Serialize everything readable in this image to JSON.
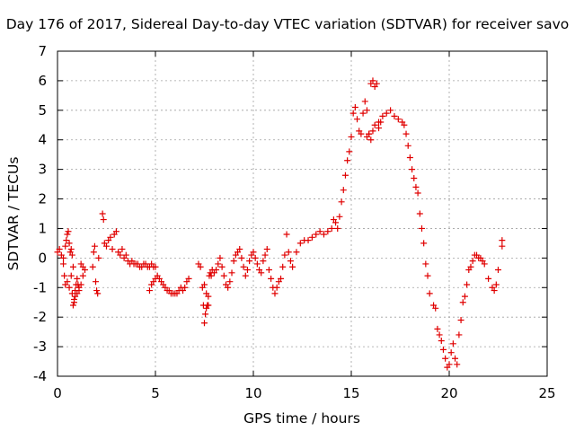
{
  "chart_data": {
    "type": "scatter",
    "title": "Day 176 of 2017, Sidereal Day-to-day VTEC variation (SDTVAR) for receiver savo",
    "xlabel": "GPS time / hours",
    "ylabel": "SDTVAR / TECUs",
    "xlim": [
      0,
      25
    ],
    "ylim": [
      -4,
      7
    ],
    "xticks": [
      0,
      5,
      10,
      15,
      20,
      25
    ],
    "yticks": [
      -4,
      -3,
      -2,
      -1,
      0,
      1,
      2,
      3,
      4,
      5,
      6,
      7
    ],
    "grid": true,
    "marker": "+",
    "color": "#e00000",
    "series": [
      {
        "name": "SDTVAR",
        "x": [
          0.0,
          0.1,
          0.2,
          0.3,
          0.35,
          0.4,
          0.45,
          0.5,
          0.55,
          0.6,
          0.65,
          0.7,
          0.75,
          0.8,
          0.85,
          0.9,
          0.95,
          1.0,
          1.05,
          1.1,
          1.2,
          1.3,
          0.3,
          0.4,
          0.5,
          0.6,
          0.7,
          0.75,
          0.8,
          0.85,
          0.9,
          1.0,
          1.1,
          1.2,
          1.3,
          1.4,
          1.8,
          1.85,
          1.9,
          1.95,
          2.0,
          2.05,
          2.1,
          2.3,
          2.35,
          2.4,
          2.5,
          2.6,
          2.7,
          2.8,
          2.9,
          3.0,
          3.1,
          3.2,
          3.3,
          3.4,
          3.5,
          3.6,
          3.7,
          3.8,
          3.9,
          4.0,
          4.1,
          4.2,
          4.3,
          4.4,
          4.5,
          4.6,
          4.7,
          4.8,
          4.9,
          5.0,
          4.7,
          4.8,
          4.9,
          5.0,
          5.1,
          5.2,
          5.3,
          5.4,
          5.5,
          5.6,
          5.7,
          5.8,
          5.9,
          6.0,
          6.1,
          6.2,
          6.3,
          6.4,
          6.5,
          6.6,
          6.7,
          7.2,
          7.3,
          7.4,
          7.45,
          7.5,
          7.55,
          7.6,
          7.65,
          7.7,
          7.75,
          7.8,
          7.85,
          7.9,
          7.5,
          7.6,
          7.7,
          8.0,
          8.1,
          8.2,
          8.3,
          8.4,
          8.5,
          8.6,
          8.7,
          8.8,
          8.9,
          9.0,
          9.1,
          9.2,
          9.3,
          9.4,
          9.5,
          9.6,
          9.7,
          9.8,
          9.9,
          10.0,
          10.1,
          10.2,
          10.3,
          10.4,
          10.5,
          10.6,
          10.7,
          10.8,
          10.9,
          11.0,
          11.1,
          11.2,
          11.3,
          11.4,
          11.5,
          11.6,
          11.7,
          11.8,
          11.9,
          12.0,
          12.2,
          12.4,
          12.6,
          12.8,
          13.0,
          13.2,
          13.4,
          13.6,
          13.8,
          14.0,
          14.1,
          14.2,
          14.3,
          14.4,
          14.5,
          14.6,
          14.7,
          14.8,
          14.9,
          15.0,
          15.1,
          15.2,
          15.3,
          15.4,
          15.5,
          15.6,
          15.7,
          15.8,
          15.9,
          16.0,
          16.1,
          16.2,
          16.3,
          16.4,
          16.5,
          15.8,
          15.9,
          16.0,
          16.1,
          16.2,
          16.4,
          16.6,
          16.8,
          17.0,
          17.2,
          17.4,
          17.6,
          17.7,
          17.8,
          17.9,
          18.0,
          18.1,
          18.2,
          18.3,
          18.4,
          18.5,
          18.6,
          18.7,
          18.8,
          18.9,
          19.0,
          19.2,
          19.3,
          19.4,
          19.5,
          19.6,
          19.7,
          19.8,
          19.9,
          20.0,
          20.1,
          20.2,
          20.3,
          20.4,
          20.5,
          20.6,
          20.7,
          20.8,
          20.9,
          21.0,
          21.1,
          21.2,
          21.3,
          21.4,
          21.5,
          21.6,
          21.7,
          21.8,
          22.0,
          22.2,
          22.3,
          22.4,
          22.5,
          22.7,
          22.7
        ],
        "y": [
          0.2,
          0.3,
          0.1,
          -0.2,
          -0.6,
          -0.9,
          0.6,
          0.8,
          0.9,
          0.5,
          0.2,
          -0.6,
          -1.2,
          -1.6,
          -1.4,
          -1.1,
          -0.9,
          -0.7,
          -0.9,
          -1.1,
          -0.2,
          -0.3,
          0.0,
          0.4,
          -0.8,
          -1.0,
          0.3,
          0.1,
          -0.3,
          -1.5,
          -1.3,
          -1.2,
          -1.0,
          -0.9,
          -0.6,
          -0.4,
          -0.3,
          0.2,
          0.4,
          -0.8,
          -1.1,
          -1.2,
          0.0,
          1.5,
          1.3,
          0.5,
          0.4,
          0.6,
          0.7,
          0.3,
          0.8,
          0.9,
          0.2,
          0.1,
          0.3,
          0.0,
          0.1,
          -0.1,
          -0.2,
          -0.1,
          -0.2,
          -0.2,
          -0.2,
          -0.3,
          -0.3,
          -0.2,
          -0.2,
          -0.3,
          -0.3,
          -0.2,
          -0.3,
          -0.3,
          -1.1,
          -0.9,
          -0.8,
          -0.7,
          -0.6,
          -0.7,
          -0.8,
          -0.9,
          -1.0,
          -1.1,
          -1.1,
          -1.2,
          -1.2,
          -1.2,
          -1.2,
          -1.1,
          -1.0,
          -1.1,
          -1.0,
          -0.8,
          -0.7,
          -0.2,
          -0.3,
          -1.0,
          -1.6,
          -2.2,
          -1.9,
          -1.7,
          -1.6,
          -1.6,
          -0.6,
          -0.5,
          -0.6,
          -0.4,
          -0.9,
          -1.2,
          -1.3,
          -0.5,
          -0.4,
          -0.2,
          0.0,
          -0.3,
          -0.6,
          -0.9,
          -1.0,
          -0.8,
          -0.5,
          -0.1,
          0.1,
          0.2,
          0.3,
          0.0,
          -0.3,
          -0.6,
          -0.4,
          -0.1,
          0.1,
          0.2,
          0.0,
          -0.2,
          -0.4,
          -0.5,
          -0.1,
          0.1,
          0.3,
          -0.4,
          -0.7,
          -1.0,
          -1.2,
          -1.0,
          -0.8,
          -0.7,
          -0.3,
          0.1,
          0.8,
          0.2,
          -0.1,
          -0.3,
          0.2,
          0.5,
          0.6,
          0.6,
          0.7,
          0.8,
          0.9,
          0.8,
          0.9,
          1.0,
          1.3,
          1.2,
          1.0,
          1.4,
          1.9,
          2.3,
          2.8,
          3.3,
          3.6,
          4.1,
          4.9,
          5.1,
          4.7,
          4.3,
          4.2,
          4.9,
          5.3,
          5.0,
          4.2,
          5.9,
          6.0,
          5.8,
          5.9,
          4.4,
          4.6,
          4.1,
          4.2,
          4.0,
          4.3,
          4.5,
          4.6,
          4.8,
          4.9,
          5.0,
          4.8,
          4.7,
          4.6,
          4.5,
          4.2,
          3.8,
          3.4,
          3.0,
          2.7,
          2.4,
          2.2,
          1.5,
          1.0,
          0.5,
          -0.2,
          -0.6,
          -1.2,
          -1.6,
          -1.7,
          -2.4,
          -2.6,
          -2.8,
          -3.1,
          -3.4,
          -3.7,
          -3.6,
          -3.2,
          -2.9,
          -3.4,
          -3.6,
          -2.6,
          -2.1,
          -1.5,
          -1.3,
          -0.9,
          -0.4,
          -0.3,
          -0.1,
          0.1,
          0.1,
          0.0,
          0.0,
          -0.1,
          -0.2,
          -0.7,
          -1.0,
          -1.1,
          -0.9,
          -0.4,
          0.4,
          0.6
        ]
      }
    ]
  }
}
